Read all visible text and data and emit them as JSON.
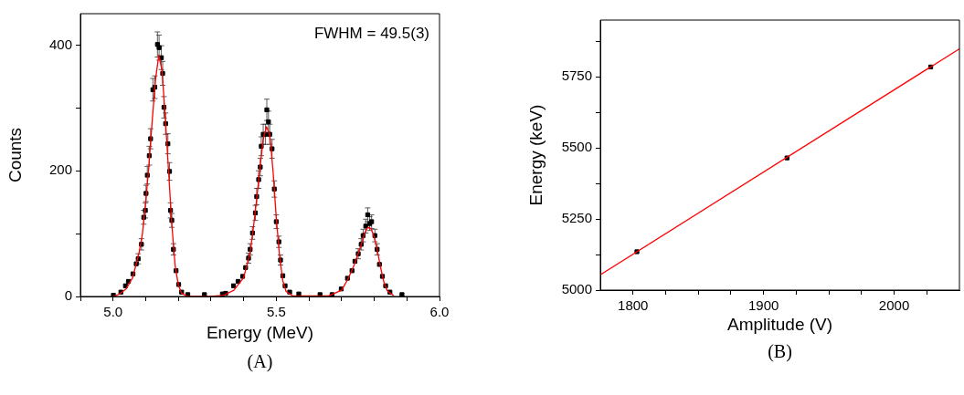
{
  "chart_data": [
    {
      "type": "scatter",
      "xlabel": "Energy (MeV)",
      "ylabel": "Counts",
      "annotations": [
        "FWHM = 49.5(3)",
        "(A)"
      ],
      "xlim": [
        4.9,
        6.0
      ],
      "ylim": [
        0,
        450
      ],
      "xticks": [
        {
          "value": 4.9,
          "label": null
        },
        {
          "value": 5,
          "label": "5.0"
        },
        {
          "value": 5.1,
          "label": null
        },
        {
          "value": 5.2,
          "label": null
        },
        {
          "value": 5.3,
          "label": null
        },
        {
          "value": 5.4,
          "label": null
        },
        5.5,
        {
          "value": 5.6,
          "label": null
        },
        {
          "value": 5.7,
          "label": null
        },
        {
          "value": 5.8,
          "label": null
        },
        {
          "value": 5.9,
          "label": null
        },
        {
          "value": 6,
          "label": "6.0"
        }
      ],
      "yticks": [
        0,
        {
          "value": 100,
          "label": null
        },
        200,
        {
          "value": 300,
          "label": null
        },
        400
      ],
      "grid": false,
      "legend": false,
      "series": [
        {
          "marker": "square",
          "color": "#000000",
          "x": [
            5.001,
            5.024,
            5.038,
            5.047,
            5.061,
            5.071,
            5.077,
            5.087,
            5.094,
            5.099,
            5.101,
            5.105,
            5.111,
            5.115,
            5.122,
            5.128,
            5.136,
            5.141,
            5.148,
            5.152,
            5.156,
            5.161,
            5.168,
            5.173,
            5.176,
            5.18,
            5.185,
            5.193,
            5.201,
            5.21,
            5.229,
            5.28,
            5.335,
            5.345,
            5.369,
            5.383,
            5.397,
            5.406,
            5.415,
            5.42,
            5.427,
            5.436,
            5.44,
            5.446,
            5.451,
            5.454,
            5.46,
            5.467,
            5.471,
            5.476,
            5.48,
            5.487,
            5.494,
            5.5,
            5.508,
            5.513,
            5.52,
            5.527,
            5.541,
            5.569,
            5.634,
            5.671,
            5.699,
            5.718,
            5.732,
            5.741,
            5.751,
            5.76,
            5.766,
            5.774,
            5.78,
            5.786,
            5.792,
            5.802,
            5.809,
            5.816,
            5.825,
            5.835,
            5.848,
            5.885
          ],
          "values": [
            2,
            7,
            17,
            24,
            36,
            52,
            60,
            83,
            126,
            137,
            164,
            193,
            224,
            251,
            329,
            333,
            401,
            396,
            380,
            355,
            301,
            275,
            243,
            199,
            137,
            121,
            75,
            41,
            19,
            7,
            3,
            3,
            4,
            5,
            17,
            24,
            32,
            46,
            61,
            75,
            101,
            133,
            159,
            186,
            206,
            239,
            258,
            258,
            297,
            278,
            258,
            235,
            171,
            119,
            87,
            58,
            33,
            17,
            7,
            4,
            3,
            3,
            12,
            29,
            41,
            56,
            68,
            83,
            97,
            112,
            130,
            116,
            119,
            97,
            75,
            51,
            32,
            17,
            7,
            3
          ],
          "errors": [
            null,
            null,
            null,
            null,
            null,
            null,
            8,
            9,
            11,
            12,
            13,
            14,
            15,
            16,
            18,
            18,
            20,
            20,
            19,
            19,
            17,
            17,
            16,
            14,
            12,
            11,
            9,
            null,
            null,
            null,
            null,
            null,
            null,
            null,
            null,
            null,
            null,
            null,
            8,
            9,
            10,
            12,
            13,
            14,
            14,
            15,
            16,
            16,
            17,
            17,
            16,
            15,
            13,
            11,
            9,
            8,
            null,
            null,
            null,
            null,
            null,
            null,
            null,
            null,
            null,
            null,
            8,
            9,
            10,
            11,
            11,
            11,
            11,
            10,
            9,
            null,
            null,
            null,
            null,
            null
          ]
        },
        {
          "type": "line",
          "color": "#ff0000",
          "x": [
            5.0,
            5.02,
            5.04,
            5.06,
            5.08,
            5.09,
            5.1,
            5.11,
            5.12,
            5.13,
            5.14,
            5.15,
            5.16,
            5.17,
            5.18,
            5.19,
            5.2,
            5.21,
            5.23,
            5.3,
            5.34,
            5.37,
            5.4,
            5.42,
            5.43,
            5.44,
            5.45,
            5.46,
            5.47,
            5.48,
            5.49,
            5.5,
            5.51,
            5.52,
            5.53,
            5.55,
            5.66,
            5.7,
            5.72,
            5.74,
            5.76,
            5.77,
            5.78,
            5.79,
            5.8,
            5.81,
            5.82,
            5.83,
            5.84,
            5.86
          ],
          "values": [
            0,
            4,
            12,
            30,
            70,
            100,
            150,
            210,
            280,
            345,
            384,
            360,
            285,
            200,
            115,
            50,
            18,
            5,
            0,
            0,
            2,
            10,
            30,
            70,
            110,
            155,
            205,
            250,
            270,
            258,
            200,
            125,
            65,
            25,
            8,
            1,
            1,
            10,
            28,
            52,
            82,
            100,
            110,
            108,
            95,
            72,
            45,
            22,
            9,
            1
          ]
        }
      ]
    },
    {
      "type": "scatter",
      "xlabel": "Amplitude (V)",
      "ylabel": "Energy (keV)",
      "annotations": [
        "(B)"
      ],
      "xlim": [
        1775,
        2050
      ],
      "ylim": [
        5000,
        5950
      ],
      "xticks": [
        1800,
        {
          "value": 1825,
          "label": null
        },
        {
          "value": 1850,
          "label": null
        },
        {
          "value": 1875,
          "label": null
        },
        1900,
        {
          "value": 1925,
          "label": null
        },
        {
          "value": 1950,
          "label": null
        },
        {
          "value": 1975,
          "label": null
        },
        2000,
        {
          "value": 2025,
          "label": null
        }
      ],
      "yticks": [
        5000,
        {
          "value": 5125,
          "label": null
        },
        5250,
        {
          "value": 5375,
          "label": null
        },
        5500,
        {
          "value": 5625,
          "label": null
        },
        5750,
        {
          "value": 5875,
          "label": null
        }
      ],
      "grid": false,
      "legend": false,
      "series": [
        {
          "marker": "square",
          "color": "#000000",
          "x": [
            1803,
            1918,
            2028
          ],
          "values": [
            5135,
            5465,
            5785
          ]
        },
        {
          "type": "line",
          "color": "#ff0000",
          "x": [
            1775,
            2050
          ],
          "values": [
            5054,
            5849
          ]
        }
      ]
    }
  ]
}
